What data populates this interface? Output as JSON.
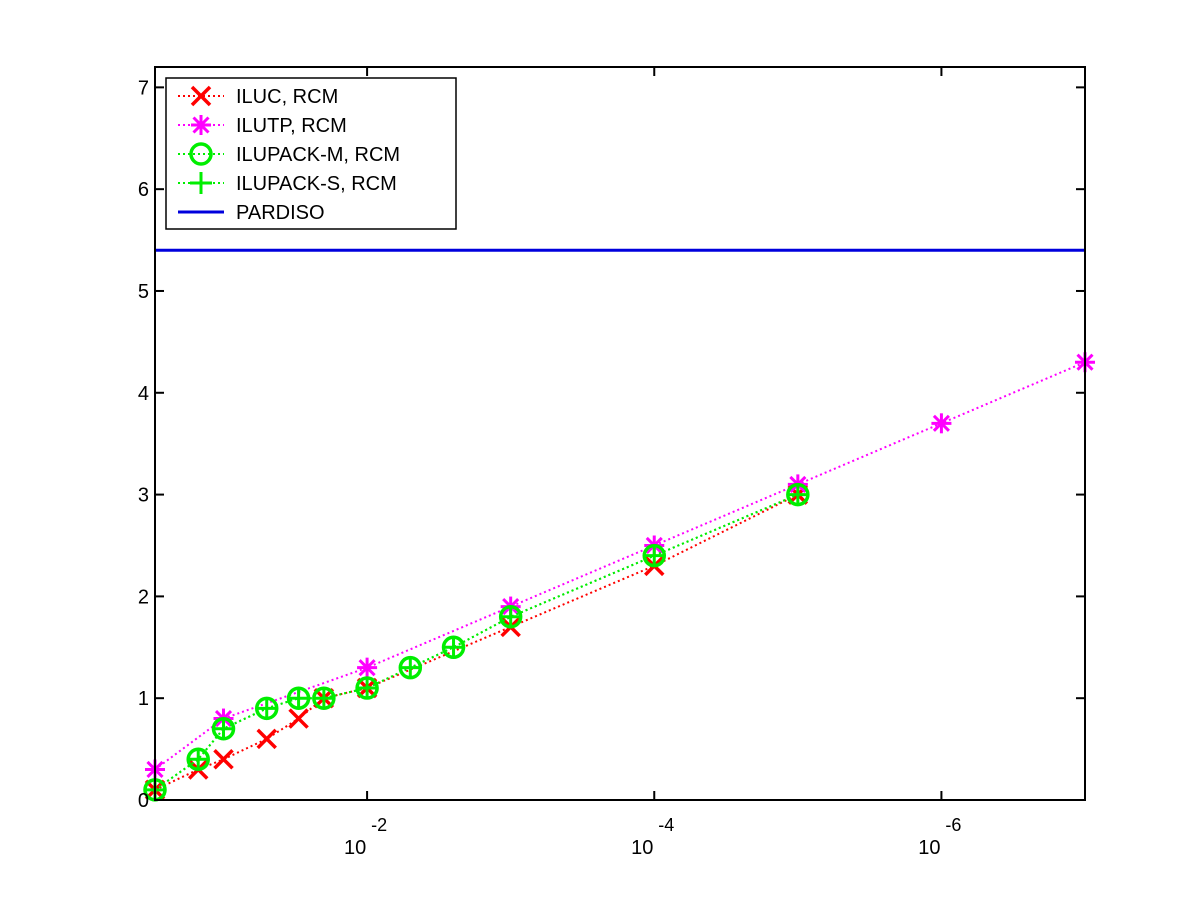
{
  "chart_data": {
    "type": "line",
    "title": "",
    "xlabel": "",
    "ylabel": "",
    "x_scale": "log",
    "x_reversed": true,
    "xlim": [
      0.3,
      1e-07
    ],
    "ylim": [
      0,
      7.2
    ],
    "x_ticks": [
      {
        "base": "10",
        "exp": "-2",
        "value": 0.01
      },
      {
        "base": "10",
        "exp": "-4",
        "value": 0.0001
      },
      {
        "base": "10",
        "exp": "-6",
        "value": 1e-06
      }
    ],
    "y_ticks": [
      {
        "label": "0",
        "value": 0
      },
      {
        "label": "1",
        "value": 1
      },
      {
        "label": "2",
        "value": 2
      },
      {
        "label": "3",
        "value": 3
      },
      {
        "label": "4",
        "value": 4
      },
      {
        "label": "5",
        "value": 5
      },
      {
        "label": "6",
        "value": 6
      },
      {
        "label": "7",
        "value": 7
      }
    ],
    "grid": false,
    "legend_position": "top-left",
    "series": [
      {
        "name": "ILUC, RCM",
        "color": "#ff0000",
        "marker": "x-mark",
        "line_style": "dotted",
        "x": [
          0.3,
          0.15,
          0.1,
          0.05,
          0.03,
          0.02,
          0.01,
          0.001,
          0.0001,
          1e-05
        ],
        "y": [
          0.1,
          0.3,
          0.4,
          0.6,
          0.8,
          1.0,
          1.1,
          1.7,
          2.3,
          3.0
        ]
      },
      {
        "name": "ILUTP, RCM",
        "color": "#ff00ff",
        "marker": "asterisk",
        "line_style": "dotted",
        "x": [
          0.3,
          0.1,
          0.01,
          0.001,
          0.0001,
          1e-05,
          1e-06,
          1e-07
        ],
        "y": [
          0.3,
          0.8,
          1.3,
          1.9,
          2.5,
          3.1,
          3.7,
          4.3
        ]
      },
      {
        "name": "ILUPACK-M, RCM",
        "color": "#00ee00",
        "marker": "circle",
        "line_style": "dotted",
        "x": [
          0.3,
          0.15,
          0.1,
          0.05,
          0.03,
          0.02,
          0.01,
          0.005,
          0.0025,
          0.001,
          0.0001,
          1e-05
        ],
        "y": [
          0.1,
          0.4,
          0.7,
          0.9,
          1.0,
          1.0,
          1.1,
          1.3,
          1.5,
          1.8,
          2.4,
          3.0
        ]
      },
      {
        "name": "ILUPACK-S, RCM",
        "color": "#00ee00",
        "marker": "plus",
        "line_style": "dotted",
        "x": [
          0.3,
          0.15,
          0.1,
          0.05,
          0.03,
          0.02,
          0.01,
          0.005,
          0.0025,
          0.001,
          0.0001,
          1e-05
        ],
        "y": [
          0.1,
          0.4,
          0.7,
          0.9,
          1.0,
          1.0,
          1.1,
          1.3,
          1.5,
          1.8,
          2.4,
          3.0
        ]
      },
      {
        "name": "PARDISO",
        "color": "#0000dd",
        "marker": "none",
        "line_style": "solid",
        "x": [
          0.3,
          1e-07
        ],
        "y": [
          5.4,
          5.4
        ]
      }
    ]
  }
}
